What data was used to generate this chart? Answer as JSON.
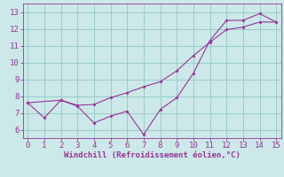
{
  "line1_x": [
    0,
    1,
    2,
    3,
    4,
    5,
    6,
    7,
    8,
    9,
    10,
    11,
    12,
    13,
    14,
    15
  ],
  "line1_y": [
    7.6,
    6.7,
    7.75,
    7.4,
    6.4,
    6.8,
    7.1,
    5.7,
    7.2,
    7.9,
    9.35,
    11.3,
    12.5,
    12.5,
    12.9,
    12.4
  ],
  "line2_x": [
    0,
    2,
    3,
    4,
    5,
    6,
    7,
    8,
    9,
    10,
    11,
    12,
    13,
    14,
    15
  ],
  "line2_y": [
    7.6,
    7.75,
    7.45,
    7.5,
    7.9,
    8.2,
    8.55,
    8.85,
    9.5,
    10.4,
    11.2,
    11.95,
    12.1,
    12.4,
    12.4
  ],
  "color": "#993399",
  "xlim": [
    -0.3,
    15.3
  ],
  "ylim": [
    5.5,
    13.5
  ],
  "xticks": [
    0,
    1,
    2,
    3,
    4,
    5,
    6,
    7,
    8,
    9,
    10,
    11,
    12,
    13,
    14,
    15
  ],
  "yticks": [
    6,
    7,
    8,
    9,
    10,
    11,
    12,
    13
  ],
  "xlabel": "Windchill (Refroidissement éolien,°C)",
  "bg_color": "#cce8e8",
  "grid_color": "#99cccc",
  "tick_fontsize": 6.5,
  "xlabel_fontsize": 6.5
}
